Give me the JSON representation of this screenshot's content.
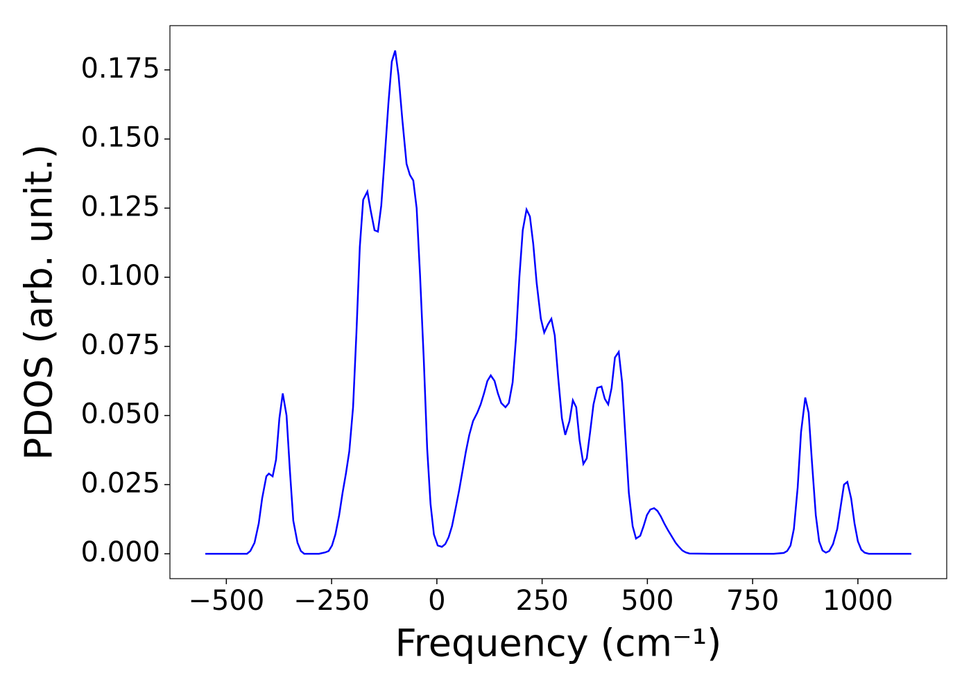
{
  "chart_data": {
    "type": "line",
    "xlabel": "Frequency (cm⁻¹)",
    "ylabel": "PDOS (arb. unit.)",
    "xlim": [
      -634,
      1211
    ],
    "ylim": [
      -0.009,
      0.191
    ],
    "xticks": [
      {
        "value": -500,
        "label": "−500"
      },
      {
        "value": -250,
        "label": "−250"
      },
      0,
      250,
      500,
      750,
      1000
    ],
    "yticks": [
      {
        "value": 0,
        "label": "0.000"
      },
      {
        "value": 0.025,
        "label": "0.025"
      },
      {
        "value": 0.05,
        "label": "0.050"
      },
      {
        "value": 0.075,
        "label": "0.075"
      },
      {
        "value": 0.1,
        "label": "0.100"
      },
      {
        "value": 0.125,
        "label": "0.125"
      },
      {
        "value": 0.15,
        "label": "0.150"
      },
      {
        "value": 0.175,
        "label": "0.175"
      }
    ],
    "series": [
      {
        "color": "#0000ff",
        "x": [
          -550,
          -500,
          -460,
          -451,
          -443,
          -433,
          -423,
          -415,
          -405,
          -399,
          -390,
          -382,
          -374,
          -366,
          -357,
          -349,
          -341,
          -331,
          -323,
          -315,
          -300,
          -280,
          -265,
          -257,
          -249,
          -241,
          -232,
          -224,
          -216,
          -208,
          -199,
          -191,
          -183,
          -175,
          -165,
          -157,
          -148,
          -140,
          -132,
          -124,
          -115,
          -107,
          -99,
          -91,
          -82,
          -72,
          -64,
          -56,
          -48,
          -40,
          -31,
          -23,
          -15,
          -7,
          2,
          12,
          20,
          28,
          36,
          44,
          53,
          61,
          69,
          77,
          86,
          96,
          104,
          112,
          120,
          128,
          137,
          145,
          153,
          163,
          171,
          180,
          188,
          196,
          204,
          213,
          221,
          229,
          237,
          247,
          255,
          264,
          272,
          280,
          288,
          297,
          305,
          315,
          323,
          331,
          339,
          348,
          356,
          364,
          372,
          381,
          391,
          399,
          407,
          415,
          423,
          432,
          440,
          448,
          456,
          465,
          473,
          483,
          491,
          499,
          507,
          516,
          524,
          532,
          540,
          549,
          559,
          567,
          575,
          583,
          591,
          600,
          650,
          700,
          750,
          800,
          824,
          832,
          840,
          848,
          857,
          865,
          875,
          883,
          891,
          900,
          908,
          916,
          924,
          932,
          941,
          951,
          959,
          967,
          975,
          984,
          992,
          1000,
          1008,
          1016,
          1026,
          1050,
          1100,
          1127
        ],
        "values": [
          0,
          0,
          0,
          0,
          0.001,
          0.004,
          0.011,
          0.02,
          0.028,
          0.029,
          0.028,
          0.034,
          0.049,
          0.058,
          0.05,
          0.03,
          0.012,
          0.004,
          0.001,
          0,
          0,
          0,
          0.0005,
          0.001,
          0.003,
          0.007,
          0.014,
          0.022,
          0.029,
          0.037,
          0.053,
          0.08,
          0.111,
          0.128,
          0.131,
          0.124,
          0.117,
          0.1165,
          0.126,
          0.143,
          0.163,
          0.178,
          0.182,
          0.173,
          0.157,
          0.141,
          0.137,
          0.135,
          0.125,
          0.101,
          0.07,
          0.038,
          0.018,
          0.007,
          0.003,
          0.0025,
          0.0035,
          0.006,
          0.01,
          0.016,
          0.023,
          0.03,
          0.037,
          0.043,
          0.048,
          0.051,
          0.054,
          0.058,
          0.0625,
          0.0645,
          0.0625,
          0.058,
          0.0545,
          0.053,
          0.0545,
          0.062,
          0.078,
          0.1,
          0.117,
          0.1245,
          0.122,
          0.112,
          0.098,
          0.085,
          0.08,
          0.083,
          0.085,
          0.079,
          0.064,
          0.049,
          0.043,
          0.048,
          0.0555,
          0.053,
          0.041,
          0.0325,
          0.0345,
          0.044,
          0.054,
          0.06,
          0.0605,
          0.056,
          0.054,
          0.06,
          0.071,
          0.073,
          0.062,
          0.042,
          0.022,
          0.01,
          0.0055,
          0.0065,
          0.01,
          0.014,
          0.016,
          0.0165,
          0.0155,
          0.0135,
          0.011,
          0.0085,
          0.006,
          0.004,
          0.0025,
          0.0012,
          0.0005,
          0.0001,
          0,
          0,
          0,
          0,
          0.0003,
          0.001,
          0.003,
          0.009,
          0.024,
          0.044,
          0.0565,
          0.051,
          0.033,
          0.014,
          0.0045,
          0.0012,
          0.0004,
          0.001,
          0.0035,
          0.009,
          0.017,
          0.025,
          0.026,
          0.02,
          0.011,
          0.0045,
          0.0015,
          0.0004,
          0,
          0,
          0,
          0
        ]
      }
    ]
  }
}
